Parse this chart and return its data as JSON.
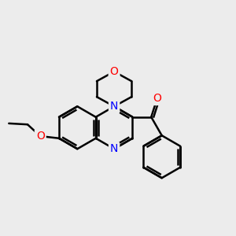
{
  "background_color": "#ececec",
  "bond_color": "#000000",
  "bond_width": 1.8,
  "atom_colors": {
    "N": "#0000ff",
    "O": "#ff0000",
    "C": "#000000"
  },
  "font_size": 10,
  "fig_width": 3.0,
  "fig_height": 3.0,
  "dpi": 100,
  "xlim": [
    0,
    12
  ],
  "ylim": [
    0,
    12
  ]
}
